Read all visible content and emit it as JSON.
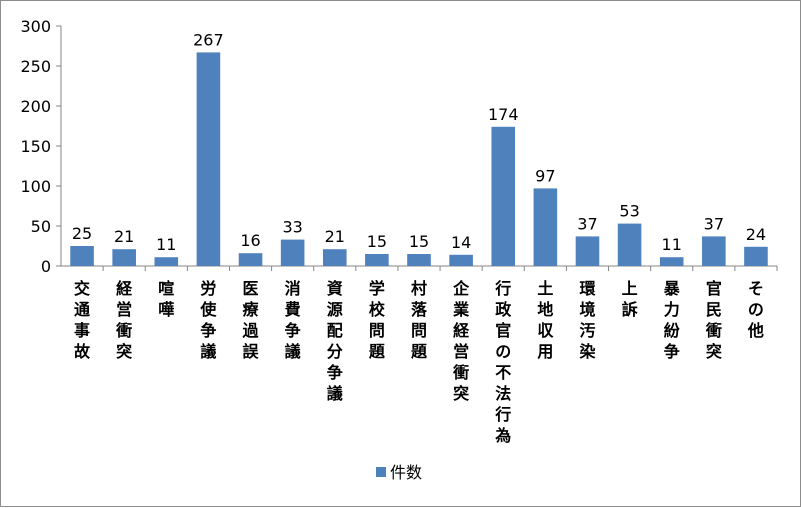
{
  "chart_data": {
    "type": "bar",
    "categories": [
      "交通事故",
      "経営衝突",
      "喧嘩",
      "労使争議",
      "医療過誤",
      "消費争議",
      "資源配分争議",
      "学校問題",
      "村落問題",
      "企業経営衝突",
      "行政官の不法行為",
      "土地収用",
      "環境汚染",
      "上訴",
      "暴力紛争",
      "官民衝突",
      "その他"
    ],
    "series": [
      {
        "name": "件数",
        "values": [
          25,
          21,
          11,
          267,
          16,
          33,
          21,
          15,
          15,
          14,
          174,
          97,
          37,
          53,
          11,
          37,
          24
        ]
      }
    ],
    "ylim": [
      0,
      300
    ],
    "yticks": [
      0,
      50,
      100,
      150,
      200,
      250,
      300
    ],
    "legend_position": "bottom",
    "grid": false,
    "bar_color": "#4f81bd"
  }
}
